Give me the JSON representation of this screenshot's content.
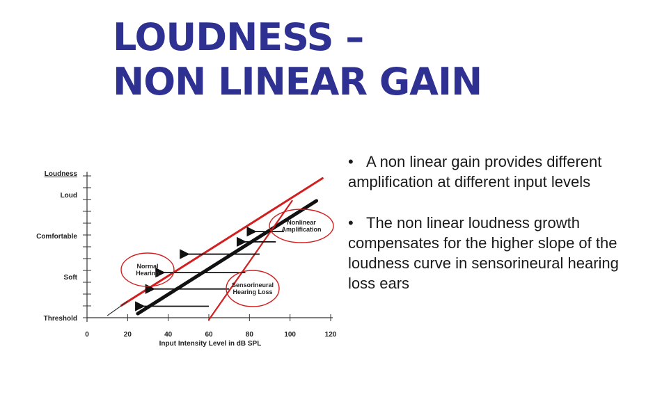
{
  "slide": {
    "title_line1": "LOUDNESS –",
    "title_line2": "NON LINEAR GAIN",
    "accent_color": "#2e3192",
    "bullet_symbol": "•",
    "bullets": [
      "A non linear gain provides different amplification at different input levels",
      "The non linear loudness growth compensates for the higher slope of the loudness curve in sensorineural hearing loss ears"
    ]
  },
  "chart_data": {
    "type": "line",
    "ylabel": "Loudness",
    "xlabel": "Input Intensity Level in dB SPL",
    "x_ticks": [
      "0",
      "20",
      "40",
      "60",
      "80",
      "100",
      "120"
    ],
    "y_categories": [
      "Threshold",
      "Soft",
      "Comfortable",
      "Loud"
    ],
    "xlim": [
      0,
      120
    ],
    "series": [
      {
        "name": "Normal Hearing",
        "color": "#111111",
        "x": [
          25,
          113
        ],
        "y": [
          0.1,
          2.85
        ]
      },
      {
        "name": "Nonlinear Amplification",
        "color": "#d21f1f",
        "x": [
          17,
          116
        ],
        "y": [
          0.3,
          3.4
        ]
      },
      {
        "name": "Sensorineural Hearing Loss",
        "color": "#d21f1f",
        "x": [
          60,
          101
        ],
        "y": [
          -0.05,
          2.85
        ]
      }
    ],
    "annotations": {
      "normal_label": [
        "Normal",
        "Hearing"
      ],
      "nonlinear_label": [
        "Nonlinear",
        "Amplification"
      ],
      "loss_label": [
        "Sensorineural",
        "Hearing Loss"
      ]
    }
  }
}
